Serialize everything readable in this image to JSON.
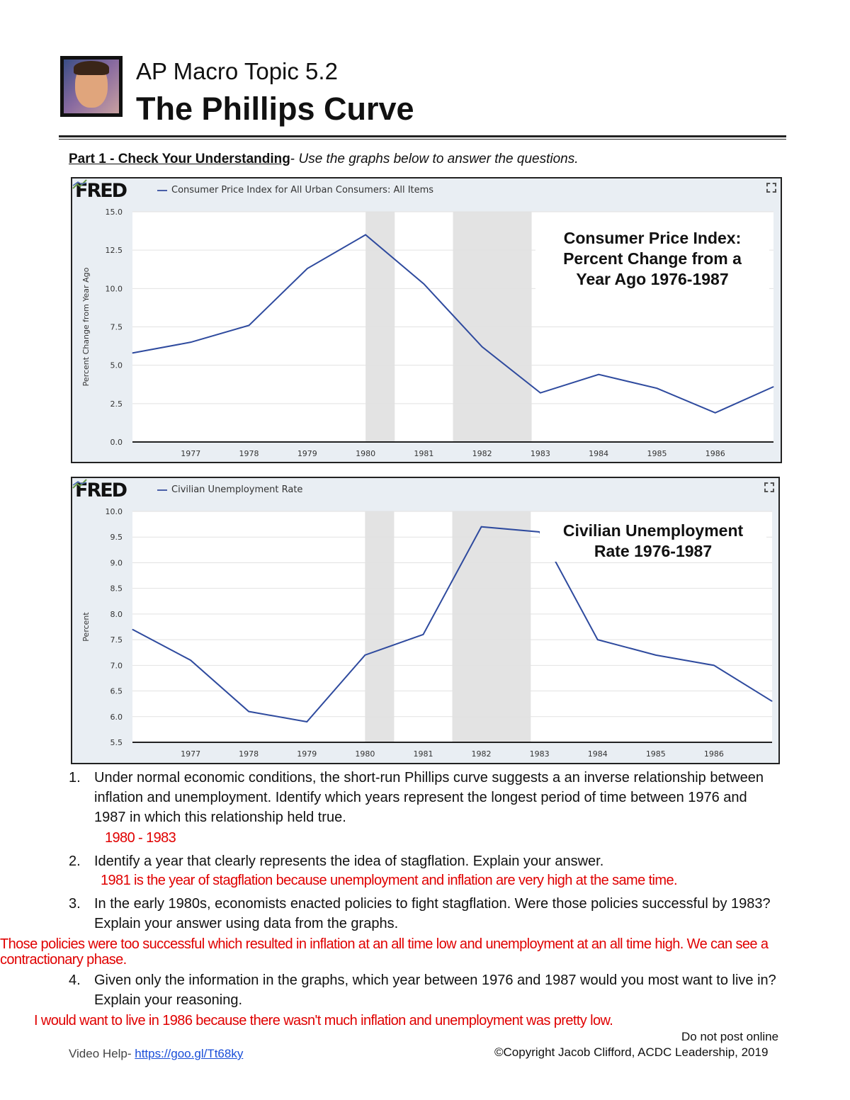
{
  "header": {
    "topic": "AP Macro Topic 5.2",
    "title": "The Phillips Curve"
  },
  "part1": {
    "heading": "Part 1 - Check Your Understanding",
    "separator": "- ",
    "instruction": "Use the graphs below to answer the questions."
  },
  "charts": [
    {
      "brand": "FRED",
      "series_title": "Consumer Price Index for All Urban Consumers: All Items",
      "annotation": [
        "Consumer Price Index:",
        "Percent Change from a",
        "Year Ago 1976-1987"
      ]
    },
    {
      "brand": "FRED",
      "series_title": "Civilian Unemployment Rate",
      "annotation": [
        "Civilian Unemployment",
        "Rate 1976-1987"
      ]
    }
  ],
  "chart_data": [
    {
      "type": "line",
      "ylabel": "Percent Change from Year Ago",
      "ylim": [
        0,
        15
      ],
      "yticks": [
        "0.0",
        "2.5",
        "5.0",
        "7.5",
        "10.0",
        "12.5",
        "15.0"
      ],
      "xticks": [
        "1977",
        "1978",
        "1979",
        "1980",
        "1981",
        "1982",
        "1983",
        "1984",
        "1985",
        "1986"
      ],
      "x": [
        1976,
        1977,
        1978,
        1979,
        1980,
        1981,
        1982,
        1983,
        1984,
        1985,
        1986,
        1987
      ],
      "values": [
        5.8,
        6.5,
        7.6,
        11.3,
        13.5,
        10.3,
        6.2,
        3.2,
        4.4,
        3.5,
        1.9,
        3.6
      ],
      "recessions": [
        [
          1980.0,
          1980.5
        ],
        [
          1981.5,
          1982.85
        ]
      ],
      "line_color": "#2e4a9e",
      "grid": true
    },
    {
      "type": "line",
      "ylabel": "Percent",
      "ylim": [
        5.5,
        10
      ],
      "yticks": [
        "5.5",
        "6.0",
        "6.5",
        "7.0",
        "7.5",
        "8.0",
        "8.5",
        "9.0",
        "9.5",
        "10.0"
      ],
      "xticks": [
        "1977",
        "1978",
        "1979",
        "1980",
        "1981",
        "1982",
        "1983",
        "1984",
        "1985",
        "1986"
      ],
      "x": [
        1976,
        1977,
        1978,
        1979,
        1980,
        1981,
        1982,
        1983,
        1984,
        1985,
        1986,
        1987
      ],
      "values": [
        7.7,
        7.1,
        6.1,
        5.9,
        7.2,
        7.6,
        9.7,
        9.6,
        7.5,
        7.2,
        7.0,
        6.3
      ],
      "recessions": [
        [
          1980.0,
          1980.5
        ],
        [
          1981.5,
          1982.85
        ]
      ],
      "line_color": "#2e4a9e",
      "grid": true
    }
  ],
  "questions": [
    {
      "num": "1.",
      "text": "Under normal economic conditions, the short-run Phillips curve suggests a an inverse relationship between inflation and unemployment. Identify which years represent the longest period of time between 1976 and 1987 in which this relationship held true.",
      "answer": "1980 - 1983"
    },
    {
      "num": "2.",
      "text": "Identify a year that clearly represents the idea of stagflation. Explain your answer.",
      "answer": "1981 is the year of stagflation because unemployment and inflation are very high at the same time."
    },
    {
      "num": "3.",
      "text": "In the early 1980s, economists enacted policies to fight stagflation. Were those policies successful by 1983? Explain your answer using data from the graphs.",
      "answer": "Those policies were too successful which resulted in inflation at an all time low and unemployment at an all time high. We can see a contractionary phase."
    },
    {
      "num": "4.",
      "text": "Given only the information in the graphs, which year between 1976 and 1987 would you most want to live in? Explain your reasoning.",
      "answer": "I would want to live in 1986 because there wasn't much inflation and unemployment was pretty low."
    }
  ],
  "footer": {
    "notice": "Do not post online",
    "copyright": "©Copyright Jacob Clifford, ACDC Leadership, 2019",
    "video_label": "Video Help- ",
    "video_link": "https://goo.gl/Tt68ky"
  },
  "colors": {
    "answer": "#e00000",
    "line": "#2e4a9e",
    "link": "#1a4ed8"
  }
}
